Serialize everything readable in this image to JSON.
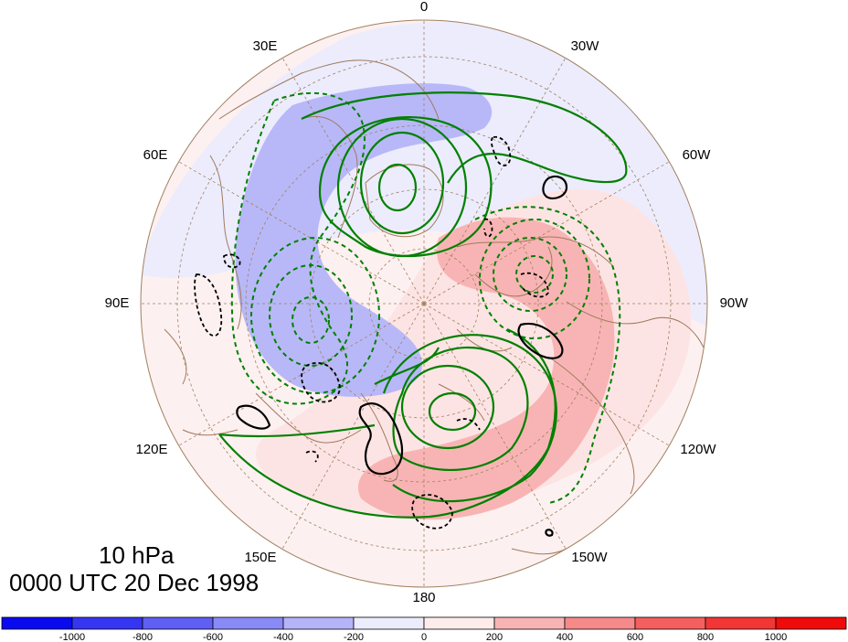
{
  "map": {
    "projection": "polar-stereographic-north",
    "longitude_labels": [
      {
        "id": "lon-0",
        "text": "0"
      },
      {
        "id": "lon-30w",
        "text": "30W"
      },
      {
        "id": "lon-60w",
        "text": "60W"
      },
      {
        "id": "lon-90w",
        "text": "90W"
      },
      {
        "id": "lon-120w",
        "text": "120W"
      },
      {
        "id": "lon-150w",
        "text": "150W"
      },
      {
        "id": "lon-180",
        "text": "180"
      },
      {
        "id": "lon-150e",
        "text": "150E"
      },
      {
        "id": "lon-120e",
        "text": "120E"
      },
      {
        "id": "lon-90e",
        "text": "90E"
      },
      {
        "id": "lon-60e",
        "text": "60E"
      },
      {
        "id": "lon-30e",
        "text": "30E"
      }
    ],
    "colors": {
      "positive_contour": "#008000",
      "negative_contour": "#008000",
      "zero_line": "#000000",
      "coastline": "#a07a5e",
      "grid": "#a08060"
    }
  },
  "title": {
    "level": "10 hPa",
    "time": "0000 UTC 20 Dec 1998"
  },
  "colorbar": {
    "labels": [
      "-1000",
      "-800",
      "-600",
      "-400",
      "-200",
      "0",
      "200",
      "400",
      "600",
      "800",
      "1000"
    ],
    "colors": [
      "#0a0af0",
      "#3535f2",
      "#5f5ff4",
      "#8a8af6",
      "#b4b4f8",
      "#ececfd",
      "#fdecec",
      "#f8b4b4",
      "#f68a8a",
      "#f45f5f",
      "#f23535",
      "#f00a0a"
    ]
  }
}
